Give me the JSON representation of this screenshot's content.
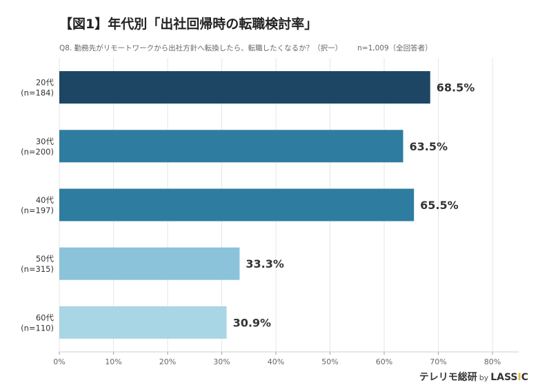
{
  "chart_data": {
    "type": "bar",
    "orientation": "horizontal",
    "title": "【図1】年代別「出社回帰時の転職検討率」",
    "subtitle": "Q8. 勤務先がリモートワークから出社方針へ転換したら、転職したくなるか？（択一）",
    "sample_note": "n=1,009（全回答者）",
    "categories": [
      {
        "age": "20代",
        "n": "(n=184)"
      },
      {
        "age": "30代",
        "n": "(n=200)"
      },
      {
        "age": "40代",
        "n": "(n=197)"
      },
      {
        "age": "50代",
        "n": "(n=315)"
      },
      {
        "age": "60代",
        "n": "(n=110)"
      }
    ],
    "values": [
      68.5,
      63.5,
      65.5,
      33.3,
      30.9
    ],
    "data_labels": [
      "68.5%",
      "63.5%",
      "65.5%",
      "33.3%",
      "30.9%"
    ],
    "colors": [
      "#1c4664",
      "#2e7ca0",
      "#2e7ca0",
      "#8bc3da",
      "#a9d6e5"
    ],
    "xlim": [
      0,
      80
    ],
    "x_ticks": [
      "0%",
      "10%",
      "20%",
      "30%",
      "40%",
      "50%",
      "60%",
      "70%",
      "80%"
    ],
    "grid": true
  },
  "logo": {
    "brand": "テレリモ総研",
    "by": "by",
    "company_pre": "LASS",
    "company_i": "I",
    "company_post": "C"
  }
}
